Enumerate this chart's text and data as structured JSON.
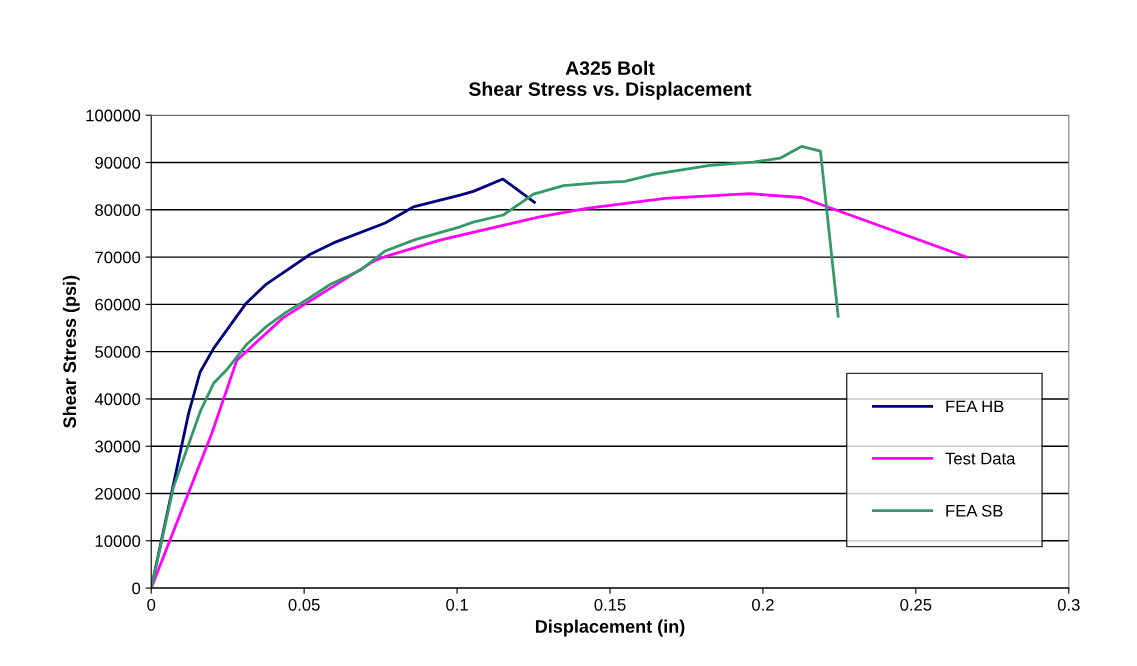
{
  "chart_data": {
    "type": "line",
    "title": "A325 Bolt\nShear Stress vs. Displacement",
    "xlabel": "Displacement (in)",
    "ylabel": "Shear Stress (psi)",
    "xlim": [
      0,
      0.3
    ],
    "xticks": [
      0,
      0.05,
      0.1,
      0.15,
      0.2,
      0.25,
      0.3
    ],
    "ylim": [
      0,
      100000
    ],
    "yticks": [
      0,
      10000,
      20000,
      30000,
      40000,
      50000,
      60000,
      70000,
      80000,
      90000,
      100000
    ],
    "grid": "y",
    "legend": "bottom right",
    "marker": "none",
    "line_style": "solid",
    "series": [
      {
        "name": "FEA HB",
        "color": "#000080",
        "x": [
          0,
          0.0122,
          0.016,
          0.0204,
          0.031,
          0.0373,
          0.052,
          0.0596,
          0.0765,
          0.0857,
          0.101,
          0.1053,
          0.115,
          0.1253
        ],
        "values": [
          0,
          36900,
          45700,
          50700,
          60200,
          64100,
          70600,
          73000,
          77200,
          80600,
          83100,
          83900,
          86500,
          81600
        ]
      },
      {
        "name": "Test Data",
        "color": "#ff00ff",
        "x": [
          0,
          0.0198,
          0.028,
          0.0432,
          0.0509,
          0.0732,
          0.077,
          0.0944,
          0.101,
          0.127,
          0.1424,
          0.168,
          0.1957,
          0.2126,
          0.2666
        ],
        "values": [
          0,
          32700,
          48200,
          57200,
          60300,
          69300,
          70200,
          73600,
          74600,
          78500,
          80300,
          82400,
          83400,
          82600,
          70000
        ]
      },
      {
        "name": "FEA SB",
        "color": "#339966",
        "x": [
          0,
          0.0073,
          0.016,
          0.0204,
          0.025,
          0.031,
          0.0378,
          0.0438,
          0.0514,
          0.0585,
          0.0683,
          0.0765,
          0.0863,
          0.101,
          0.1053,
          0.1151,
          0.125,
          0.1348,
          0.1457,
          0.1549,
          0.1642,
          0.1827,
          0.1968,
          0.2056,
          0.2126,
          0.2188,
          0.2246
        ],
        "values": [
          0,
          21400,
          37300,
          43300,
          46400,
          51400,
          55400,
          58200,
          61200,
          64200,
          67200,
          71300,
          73700,
          76400,
          77400,
          78900,
          83300,
          85100,
          85700,
          86000,
          87500,
          89400,
          90100,
          90900,
          93400,
          92400,
          57500
        ]
      }
    ]
  }
}
